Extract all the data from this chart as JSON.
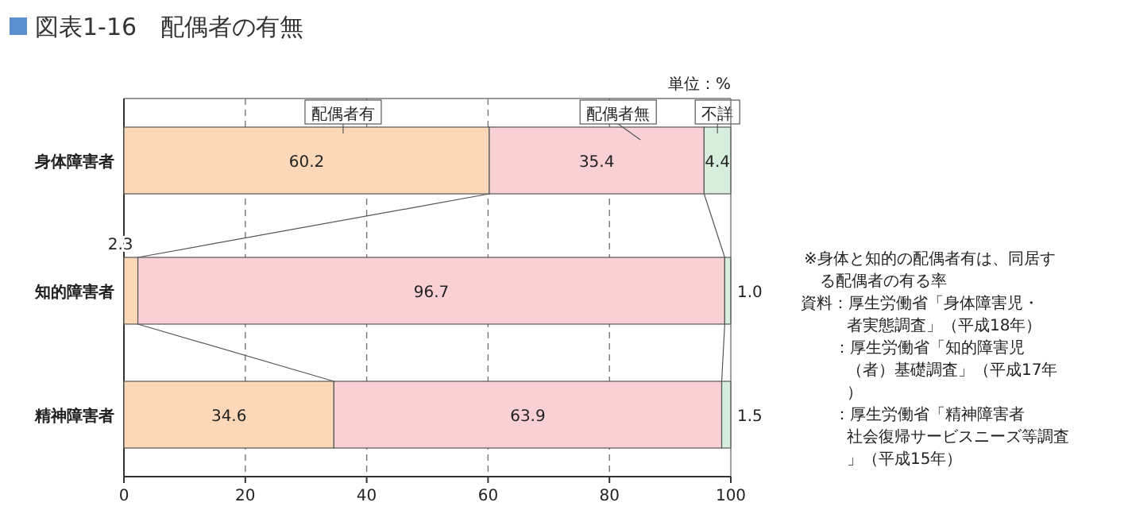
{
  "chart_data": {
    "type": "bar",
    "orientation": "horizontal",
    "stacked": true,
    "title": "図表1-16　配偶者の有無",
    "categories": [
      "身体障害者",
      "知的障害者",
      "精神障害者"
    ],
    "series": [
      {
        "name": "配偶者有",
        "color": "#fdd8b8",
        "values": [
          60.2,
          2.3,
          34.6
        ],
        "value_labels": [
          "60.2",
          "2.3",
          "34.6"
        ]
      },
      {
        "name": "配偶者無",
        "color": "#f9d0d3",
        "values": [
          35.4,
          96.7,
          63.9
        ],
        "value_labels": [
          "35.4",
          "96.7",
          "63.9"
        ]
      },
      {
        "name": "不詳",
        "color": "#d6eedb",
        "values": [
          4.4,
          1.0,
          1.5
        ],
        "value_labels": [
          "4.4",
          "1.0",
          "1.5"
        ]
      }
    ],
    "xlim": [
      0,
      100
    ],
    "xticks": [
      0,
      20,
      40,
      60,
      80,
      100
    ],
    "grid": "x",
    "legend": "top",
    "annotations": [
      "単位：%",
      "※身体と知的の配偶者有は、同居する配偶者の有る率",
      "資料：厚生労働省「身体障害児・者実態調査」（平成18年）",
      "：厚生労働省「知的障害児（者）基礎調査」（平成17年）",
      "：厚生労働省「精神障害者社会復帰サービスニーズ等調査」（平成15年）"
    ]
  }
}
